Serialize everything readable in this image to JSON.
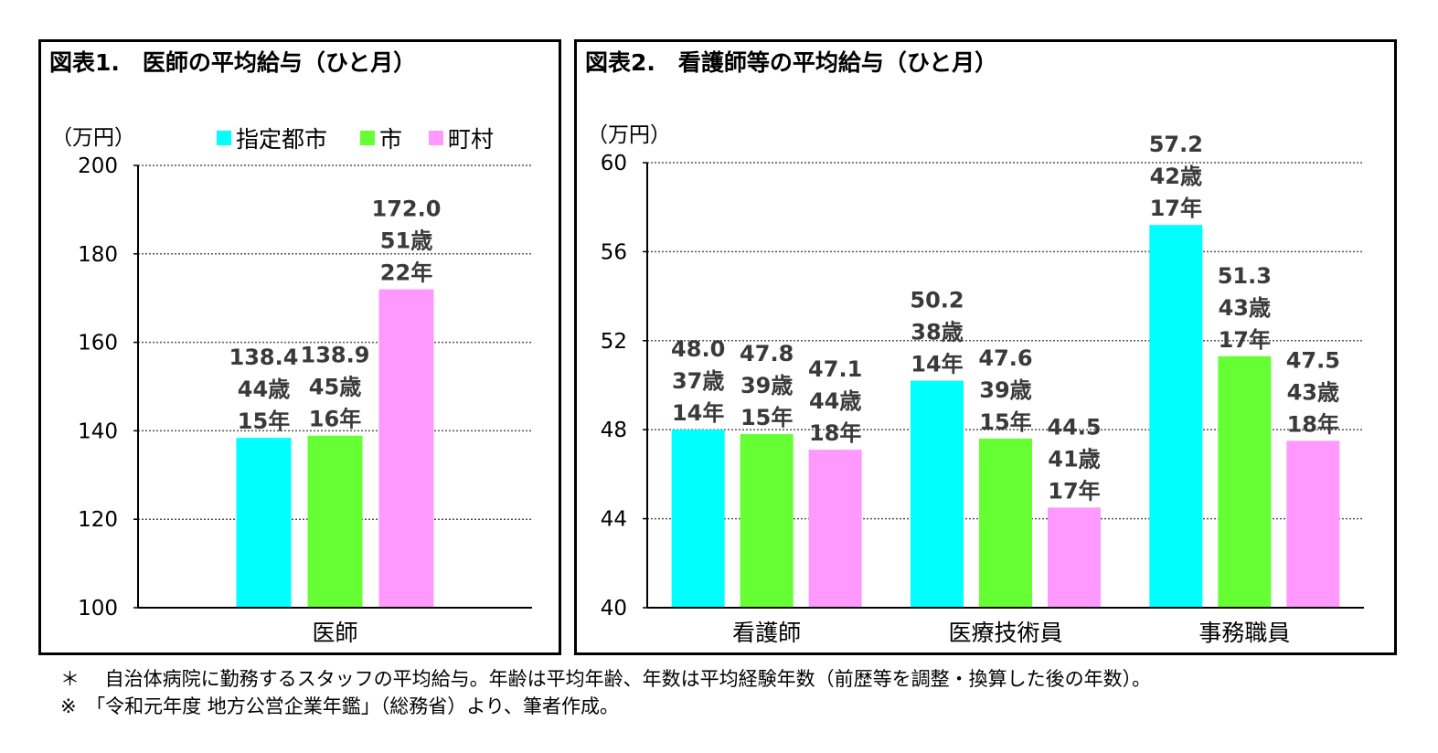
{
  "chart_data": [
    {
      "type": "bar",
      "title": "図表1.　医師の平均給与（ひと月）",
      "unit_label": "（万円）",
      "categories": [
        "医師"
      ],
      "ylim": [
        100,
        200
      ],
      "yticks": [
        100,
        120,
        140,
        160,
        180,
        200
      ],
      "grid": true,
      "legend_position": "top",
      "series": [
        {
          "name": "指定都市",
          "color": "#00FFFF",
          "values": [
            138.4
          ],
          "labels": [
            [
              "138.4",
              "44歳",
              "15年"
            ]
          ]
        },
        {
          "name": "市",
          "color": "#66FF33",
          "values": [
            138.9
          ],
          "labels": [
            [
              "138.9",
              "45歳",
              "16年"
            ]
          ]
        },
        {
          "name": "町村",
          "color": "#FF99FF",
          "values": [
            172.0
          ],
          "labels": [
            [
              "172.0",
              "51歳",
              "22年"
            ]
          ]
        }
      ]
    },
    {
      "type": "bar",
      "title": "図表2.　看護師等の平均給与（ひと月）",
      "unit_label": "（万円）",
      "categories": [
        "看護師",
        "医療技術員",
        "事務職員"
      ],
      "ylim": [
        40,
        60
      ],
      "yticks": [
        40,
        44,
        48,
        52,
        56,
        60
      ],
      "grid": true,
      "series": [
        {
          "color": "#00FFFF",
          "values": [
            48.0,
            50.2,
            57.2
          ],
          "labels": [
            [
              "48.0",
              "37歳",
              "14年"
            ],
            [
              "50.2",
              "38歳",
              "14年"
            ],
            [
              "57.2",
              "42歳",
              "17年"
            ]
          ]
        },
        {
          "color": "#66FF33",
          "values": [
            47.8,
            47.6,
            51.3
          ],
          "labels": [
            [
              "47.8",
              "39歳",
              "15年"
            ],
            [
              "47.6",
              "39歳",
              "15年"
            ],
            [
              "51.3",
              "43歳",
              "17年"
            ]
          ]
        },
        {
          "color": "#FF99FF",
          "values": [
            47.1,
            44.5,
            47.5
          ],
          "labels": [
            [
              "47.1",
              "44歳",
              "18年"
            ],
            [
              "44.5",
              "41歳",
              "17年"
            ],
            [
              "47.5",
              "43歳",
              "18年"
            ]
          ]
        }
      ]
    }
  ],
  "notes": [
    "＊　 自治体病院に勤務するスタッフの平均給与。年齢は平均年齢、年数は平均経験年数（前歴等を調整・換算した後の年数）。",
    "※　「令和元年度 地方公営企業年鑑」（総務省）より、筆者作成。"
  ]
}
